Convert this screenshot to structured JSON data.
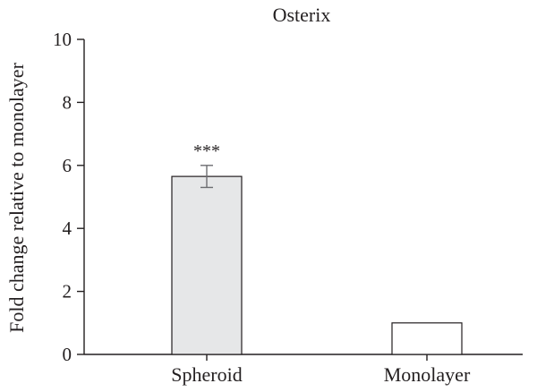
{
  "chart_data": {
    "type": "bar",
    "title": "Osterix",
    "xlabel": "",
    "ylabel": "Fold change relative to monolayer",
    "categories": [
      "Spheroid",
      "Monolayer"
    ],
    "values": [
      5.65,
      1.0
    ],
    "errors": [
      0.35,
      0.0
    ],
    "significance": [
      "***",
      ""
    ],
    "bar_colors": [
      "#e6e7e8",
      "#ffffff"
    ],
    "ylim": [
      0,
      10
    ],
    "yticks": [
      0,
      2,
      4,
      6,
      8,
      10
    ],
    "grid": false,
    "legend": "none"
  }
}
